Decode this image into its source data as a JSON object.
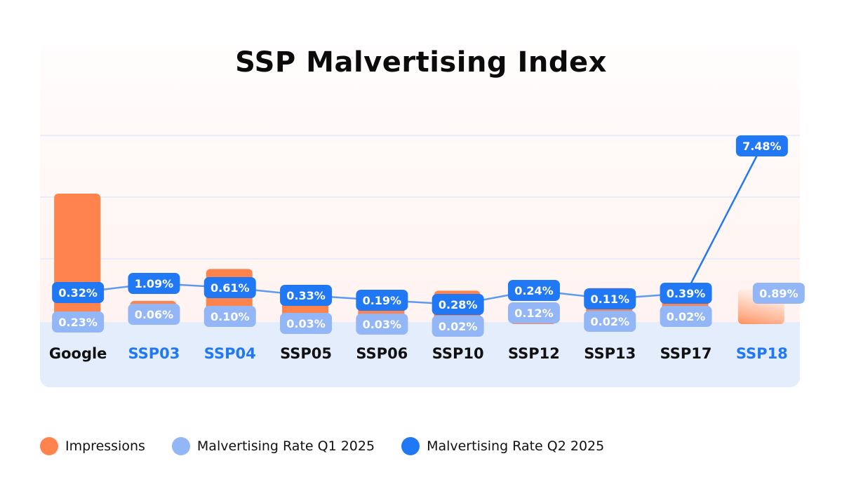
{
  "chart_data": {
    "type": "bar",
    "title": "SSP Malvertising Index",
    "xlabel": "",
    "ylabel": "",
    "grid": true,
    "legend_position": "bottom-left",
    "categories": [
      "Google",
      "SSP03",
      "SSP04",
      "SSP05",
      "SSP06",
      "SSP10",
      "SSP12",
      "SSP13",
      "SSP17",
      "SSP18"
    ],
    "highlighted_categories": [
      "SSP03",
      "SSP04",
      "SSP18"
    ],
    "series": [
      {
        "name": "Impressions",
        "type": "bar",
        "color": "#ff834d",
        "values": [
          100,
          16,
          41,
          19,
          21,
          24,
          14,
          26,
          25,
          25
        ],
        "note": "relative scale, no axis shown; SSP18 bar drawn faded"
      },
      {
        "name": "Malvertising Rate Q1 2025",
        "type": "label",
        "color": "#93b6f7",
        "values": [
          0.23,
          0.06,
          0.1,
          0.03,
          0.03,
          0.02,
          0.12,
          0.02,
          0.02,
          0.89
        ],
        "labels": [
          "0.23%",
          "0.06%",
          "0.10%",
          "0.03%",
          "0.03%",
          "0.02%",
          "0.12%",
          "0.02%",
          "0.02%",
          "0.89%"
        ]
      },
      {
        "name": "Malvertising Rate Q2 2025",
        "type": "line",
        "color": "#2178f5",
        "values": [
          0.32,
          1.09,
          0.61,
          0.33,
          0.19,
          0.28,
          0.24,
          0.11,
          0.39,
          7.48
        ],
        "labels": [
          "0.32%",
          "1.09%",
          "0.61%",
          "0.33%",
          "0.19%",
          "0.28%",
          "0.24%",
          "0.11%",
          "0.39%",
          "7.48%"
        ]
      }
    ]
  },
  "legend": [
    {
      "label": "Impressions",
      "color": "#ff834d"
    },
    {
      "label": "Malvertising Rate Q1 2025",
      "color": "#93b6f7"
    },
    {
      "label": "Malvertising Rate Q2 2025",
      "color": "#2178f5"
    }
  ],
  "colors": {
    "label_default": "#111111",
    "label_highlight": "#2178f5",
    "grid": "#e2eafb"
  }
}
